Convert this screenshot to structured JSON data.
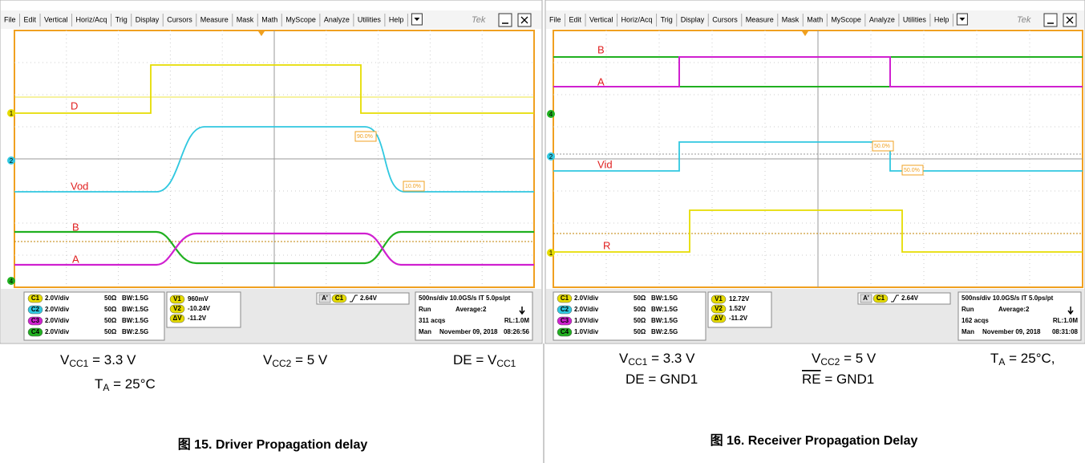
{
  "panels": [
    {
      "menu": [
        "File",
        "Edit",
        "Vertical",
        "Horiz/Acq",
        "Trig",
        "Display",
        "Cursors",
        "Measure",
        "Mask",
        "Math",
        "MyScope",
        "Analyze",
        "Utilities",
        "Help"
      ],
      "brand": "Tek",
      "trace_labels": [
        "D",
        "Vod",
        "B",
        "A"
      ],
      "markers": [
        "90.0%",
        "10.0%"
      ],
      "channel_markers": [
        "1",
        "2",
        "4"
      ],
      "channels": [
        {
          "id": "C1",
          "scale": "2.0V/div",
          "impedance": "50Ω",
          "bandwidth": "BW:1.5G",
          "color": "#e6dc00"
        },
        {
          "id": "C2",
          "scale": "2.0V/div",
          "impedance": "50Ω",
          "bandwidth": "BW:1.5G",
          "color": "#30c8e0"
        },
        {
          "id": "C3",
          "scale": "2.0V/div",
          "impedance": "50Ω",
          "bandwidth": "BW:1.5G",
          "color": "#d020d0"
        },
        {
          "id": "C4",
          "scale": "2.0V/div",
          "impedance": "50Ω",
          "bandwidth": "BW:2.5G",
          "color": "#20b020"
        }
      ],
      "cursors": [
        {
          "id": "V1",
          "value": "960mV"
        },
        {
          "id": "V2",
          "value": "-10.24V"
        },
        {
          "id": "ΔV",
          "value": "-11.2V"
        }
      ],
      "trigger": {
        "source": "A'",
        "channel": "C1",
        "level": "2.64V"
      },
      "timebase": {
        "line1": "500ns/div  10.0GS/s  IT   5.0ps/pt",
        "state": "Run",
        "average": "Average:2",
        "acqs": "311 acqs",
        "record": "RL:1.0M",
        "mode": "Man",
        "date": "November 09, 2018",
        "time": "08:26:56"
      },
      "conditions": [
        {
          "base": "V",
          "sub": "CC1",
          "text": " = 3.3 V"
        },
        {
          "base": "V",
          "sub": "CC2",
          "text": " = 5 V"
        },
        {
          "base": "DE = V",
          "sub": "CC1"
        },
        {
          "base": "T",
          "sub": "A",
          "text": " = 25°C"
        }
      ],
      "caption": "图 15. Driver Propagation delay"
    },
    {
      "menu": [
        "File",
        "Edit",
        "Vertical",
        "Horiz/Acq",
        "Trig",
        "Display",
        "Cursors",
        "Measure",
        "Mask",
        "Math",
        "MyScope",
        "Analyze",
        "Utilities",
        "Help"
      ],
      "brand": "Tek",
      "trace_labels": [
        "B",
        "A",
        "Vid",
        "R"
      ],
      "markers": [
        "50.0%",
        "50.0%"
      ],
      "channel_markers": [
        "4",
        "2",
        "1"
      ],
      "channels": [
        {
          "id": "C1",
          "scale": "2.0V/div",
          "impedance": "50Ω",
          "bandwidth": "BW:1.5G",
          "color": "#e6dc00"
        },
        {
          "id": "C2",
          "scale": "2.0V/div",
          "impedance": "50Ω",
          "bandwidth": "BW:1.5G",
          "color": "#30c8e0"
        },
        {
          "id": "C3",
          "scale": "1.0V/div",
          "impedance": "50Ω",
          "bandwidth": "BW:1.5G",
          "color": "#d020d0"
        },
        {
          "id": "C4",
          "scale": "1.0V/div",
          "impedance": "50Ω",
          "bandwidth": "BW:2.5G",
          "color": "#20b020"
        }
      ],
      "cursors": [
        {
          "id": "V1",
          "value": "12.72V"
        },
        {
          "id": "V2",
          "value": "1.52V"
        },
        {
          "id": "ΔV",
          "value": "-11.2V"
        }
      ],
      "trigger": {
        "source": "A'",
        "channel": "C1",
        "level": "2.64V"
      },
      "timebase": {
        "line1": "500ns/div  10.0GS/s  IT   5.0ps/pt",
        "state": "Run",
        "average": "Average:2",
        "acqs": "162 acqs",
        "record": "RL:1.0M",
        "mode": "Man",
        "date": "November 09, 2018",
        "time": "08:31:08"
      },
      "conditions": [
        {
          "base": "V",
          "sub": "CC1",
          "text": " = 3.3 V"
        },
        {
          "base": "V",
          "sub": "CC2",
          "text": " = 5 V"
        },
        {
          "base": "T",
          "sub": "A",
          "text": " = 25°C,"
        },
        {
          "base": "DE = GND1"
        },
        {
          "base": "RE",
          "overline": true,
          "text": " = GND1"
        }
      ],
      "caption": "图 16. Receiver Propagation Delay"
    }
  ]
}
